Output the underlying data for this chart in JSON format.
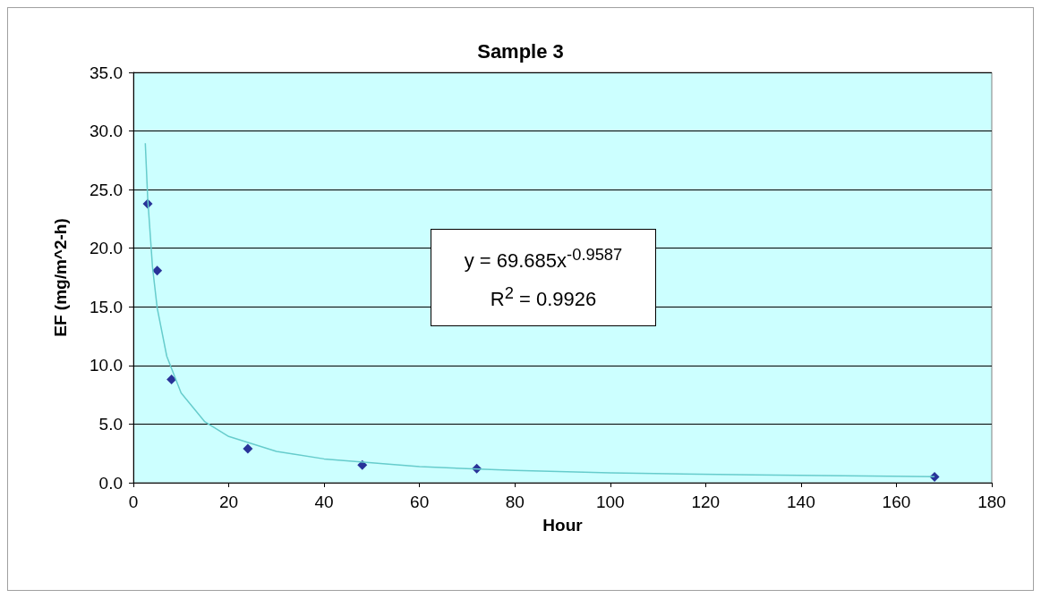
{
  "chart_data": {
    "type": "scatter",
    "title": "Sample 3",
    "xlabel": "Hour",
    "ylabel": "EF (mg/m^2-h)",
    "xlim": [
      0,
      180
    ],
    "xticks": [
      0,
      20,
      40,
      60,
      80,
      100,
      120,
      140,
      160,
      180
    ],
    "ylim": [
      0,
      35
    ],
    "yticks": [
      {
        "value": 0,
        "label": "0.0"
      },
      {
        "value": 5,
        "label": "5.0"
      },
      {
        "value": 10,
        "label": "10.0"
      },
      {
        "value": 15,
        "label": "15.0"
      },
      {
        "value": 20,
        "label": "20.0"
      },
      {
        "value": 25,
        "label": "25.0"
      },
      {
        "value": 30,
        "label": "30.0"
      },
      {
        "value": 35,
        "label": "35.0"
      }
    ],
    "grid": "y",
    "marker": "diamond",
    "series": [
      {
        "color": "#000080",
        "x": [
          3,
          5,
          8,
          24,
          48,
          72,
          168
        ],
        "values": [
          23.8,
          18.1,
          8.8,
          2.9,
          1.5,
          1.2,
          0.5
        ]
      },
      {
        "type": "line",
        "marker": "none",
        "color": "#66cccc",
        "x": [
          2.5,
          3,
          4,
          5,
          7,
          10,
          15,
          20,
          30,
          40,
          60,
          80,
          100,
          130,
          168
        ],
        "values": [
          28.95,
          24.31,
          18.45,
          14.89,
          10.79,
          7.66,
          5.19,
          3.94,
          2.67,
          2.03,
          1.37,
          1.04,
          0.84,
          0.66,
          0.51
        ]
      }
    ],
    "annotations": [
      "y = 69.685x$^{-0.9587}$",
      "R$^{2}$ = 0.9926"
    ]
  }
}
